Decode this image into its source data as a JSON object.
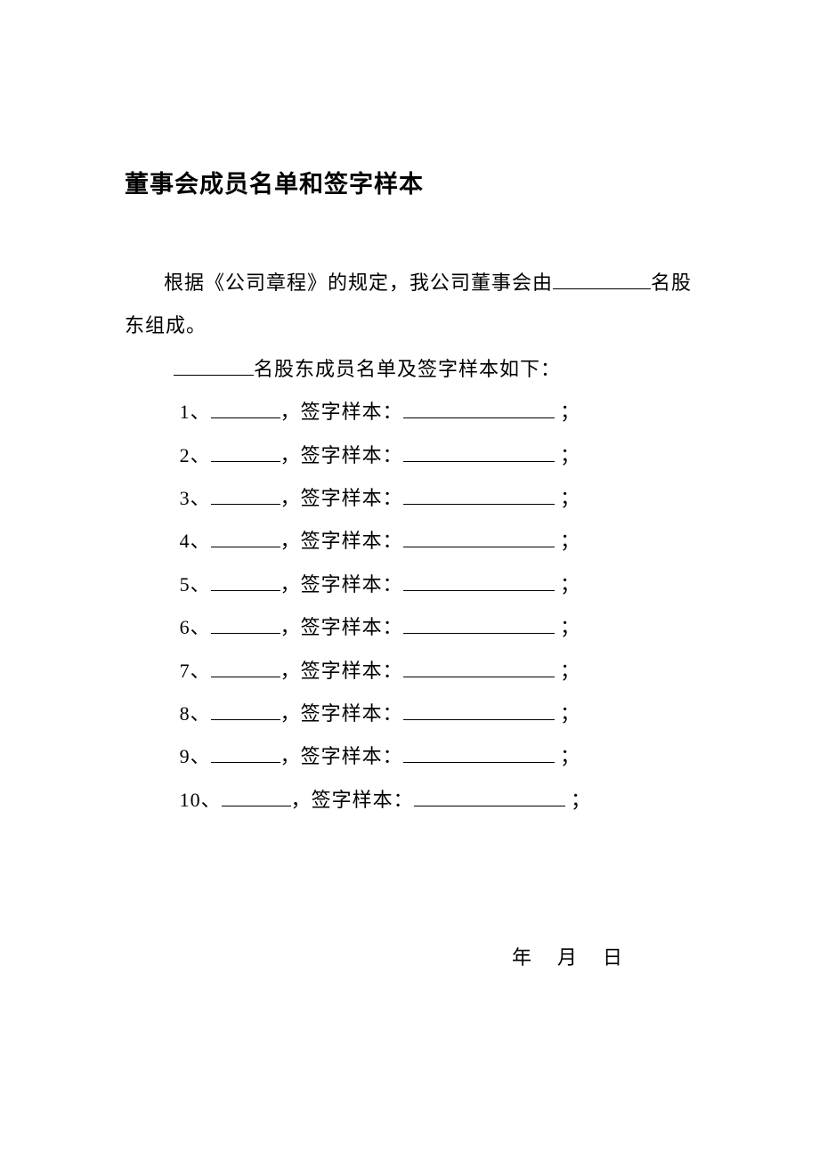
{
  "title": "董事会成员名单和签字样本",
  "intro_prefix": "根据《公司章程》的规定，我公司董事会由",
  "intro_suffix": "名股东组成。",
  "members_heading_suffix": "名股东成员名单及签字样本如下：",
  "rows": [
    {
      "num": "1、",
      "mid": "，签字样本：",
      "end": "；"
    },
    {
      "num": "2、",
      "mid": "，签字样本：",
      "end": "；"
    },
    {
      "num": "3、",
      "mid": "，签字样本：",
      "end": "；"
    },
    {
      "num": "4、",
      "mid": "，签字样本：",
      "end": "；"
    },
    {
      "num": "5、",
      "mid": "，签字样本：",
      "end": "；"
    },
    {
      "num": "6、",
      "mid": "，签字样本：",
      "end": "；"
    },
    {
      "num": "7、",
      "mid": "，签字样本：",
      "end": "；"
    },
    {
      "num": "8、",
      "mid": "，签字样本：",
      "end": "；"
    },
    {
      "num": "9、",
      "mid": "，签字样本：",
      "end": "；"
    },
    {
      "num": "10、",
      "mid": "，签字样本：",
      "end": "；"
    }
  ],
  "date": {
    "year": "年",
    "month": "月",
    "day": "日"
  },
  "colors": {
    "text": "#000000",
    "background": "#ffffff"
  },
  "typography": {
    "title_fontsize": 27,
    "body_fontsize": 22,
    "font_family": "SimSun"
  }
}
